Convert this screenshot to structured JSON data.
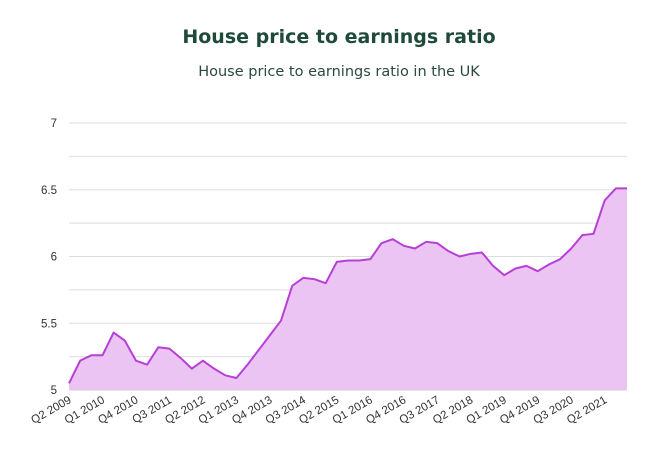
{
  "chart_data": {
    "type": "area",
    "title": "House price to earnings ratio",
    "subtitle": "House price to earnings ratio in the UK",
    "xlabel": "",
    "ylabel": "",
    "ylim": [
      5,
      7
    ],
    "yticks": [
      "5",
      "5.5",
      "6",
      "6.5",
      "7"
    ],
    "grid": true,
    "legend": "none",
    "colors": {
      "line": "#b73fd6",
      "fill": "#ecc4f3",
      "grid": "#dddddd",
      "title": "#1e4a3a"
    },
    "x_tick_labels": [
      "Q2 2009",
      "Q1 2010",
      "Q4 2010",
      "Q3 2011",
      "Q2 2012",
      "Q1 2013",
      "Q4 2013",
      "Q3 2014",
      "Q2 2015",
      "Q1 2016",
      "Q4 2016",
      "Q3 2017",
      "Q2 2018",
      "Q1 2019",
      "Q4 2019",
      "Q3 2020",
      "Q2 2021"
    ],
    "x": [
      "Q2 2009",
      "Q3 2009",
      "Q4 2009",
      "Q1 2010",
      "Q2 2010",
      "Q3 2010",
      "Q4 2010",
      "Q1 2011",
      "Q2 2011",
      "Q3 2011",
      "Q4 2011",
      "Q1 2012",
      "Q2 2012",
      "Q3 2012",
      "Q4 2012",
      "Q1 2013",
      "Q2 2013",
      "Q3 2013",
      "Q4 2013",
      "Q1 2014",
      "Q2 2014",
      "Q3 2014",
      "Q4 2014",
      "Q1 2015",
      "Q2 2015",
      "Q3 2015",
      "Q4 2015",
      "Q1 2016",
      "Q2 2016",
      "Q3 2016",
      "Q4 2016",
      "Q1 2017",
      "Q2 2017",
      "Q3 2017",
      "Q4 2017",
      "Q1 2018",
      "Q2 2018",
      "Q3 2018",
      "Q4 2018",
      "Q1 2019",
      "Q2 2019",
      "Q3 2019",
      "Q4 2019",
      "Q1 2020",
      "Q2 2020",
      "Q3 2020",
      "Q4 2020",
      "Q1 2021",
      "Q2 2021",
      "Q3 2021",
      "Q4 2021"
    ],
    "values": [
      5.05,
      5.22,
      5.26,
      5.26,
      5.43,
      5.37,
      5.22,
      5.19,
      5.32,
      5.31,
      5.24,
      5.16,
      5.22,
      5.16,
      5.11,
      5.09,
      5.19,
      5.3,
      5.41,
      5.52,
      5.78,
      5.84,
      5.83,
      5.8,
      5.96,
      5.97,
      5.97,
      5.98,
      6.1,
      6.13,
      6.08,
      6.06,
      6.11,
      6.1,
      6.04,
      6.0,
      6.02,
      6.03,
      5.93,
      5.86,
      5.91,
      5.93,
      5.89,
      5.94,
      5.98,
      6.06,
      6.16,
      6.17,
      6.42,
      6.51,
      6.51
    ]
  }
}
